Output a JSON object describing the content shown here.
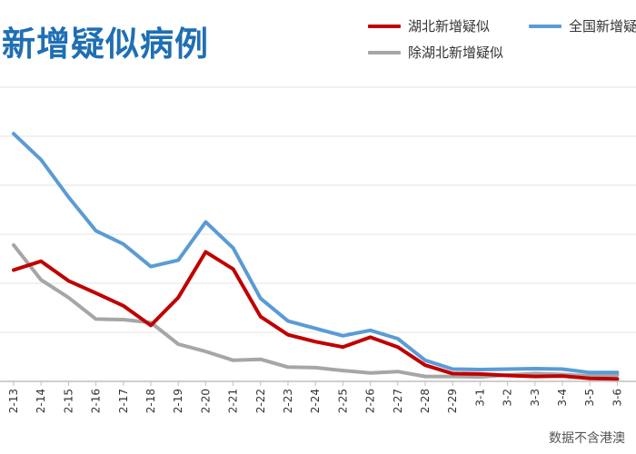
{
  "chart_data": {
    "type": "line",
    "title": "新增疑似病例",
    "note": "数据不含港澳",
    "xlabel": "",
    "ylabel": "",
    "grid": true,
    "legend_position": "top-right",
    "categories": [
      "2-13",
      "2-14",
      "2-15",
      "2-16",
      "2-17",
      "2-18",
      "2-19",
      "2-20",
      "2-21",
      "2-22",
      "2-23",
      "2-24",
      "2-25",
      "2-26",
      "2-27",
      "2-28",
      "2-29",
      "3-1",
      "3-2",
      "3-3",
      "3-4",
      "3-5",
      "3-6"
    ],
    "ylim": [
      0,
      6000
    ],
    "series": [
      {
        "name": "湖北新增疑似",
        "color": "#c00000",
        "values": [
          2270,
          2450,
          2050,
          1800,
          1540,
          1140,
          1710,
          2640,
          2290,
          1320,
          950,
          810,
          700,
          900,
          700,
          330,
          160,
          150,
          120,
          100,
          110,
          60,
          50
        ]
      },
      {
        "name": "全国新增疑似",
        "color": "#5b9bd5",
        "values": [
          5050,
          4520,
          3760,
          3070,
          2800,
          2340,
          2470,
          3250,
          2720,
          1690,
          1230,
          1080,
          930,
          1040,
          870,
          430,
          250,
          240,
          250,
          260,
          250,
          180,
          180
        ]
      },
      {
        "name": "除湖北新增疑似",
        "color": "#a6a6a6",
        "values": [
          2780,
          2070,
          1710,
          1270,
          1260,
          1200,
          760,
          610,
          430,
          450,
          290,
          280,
          220,
          170,
          200,
          100,
          100,
          90,
          130,
          160,
          140,
          110,
          130
        ]
      }
    ]
  }
}
